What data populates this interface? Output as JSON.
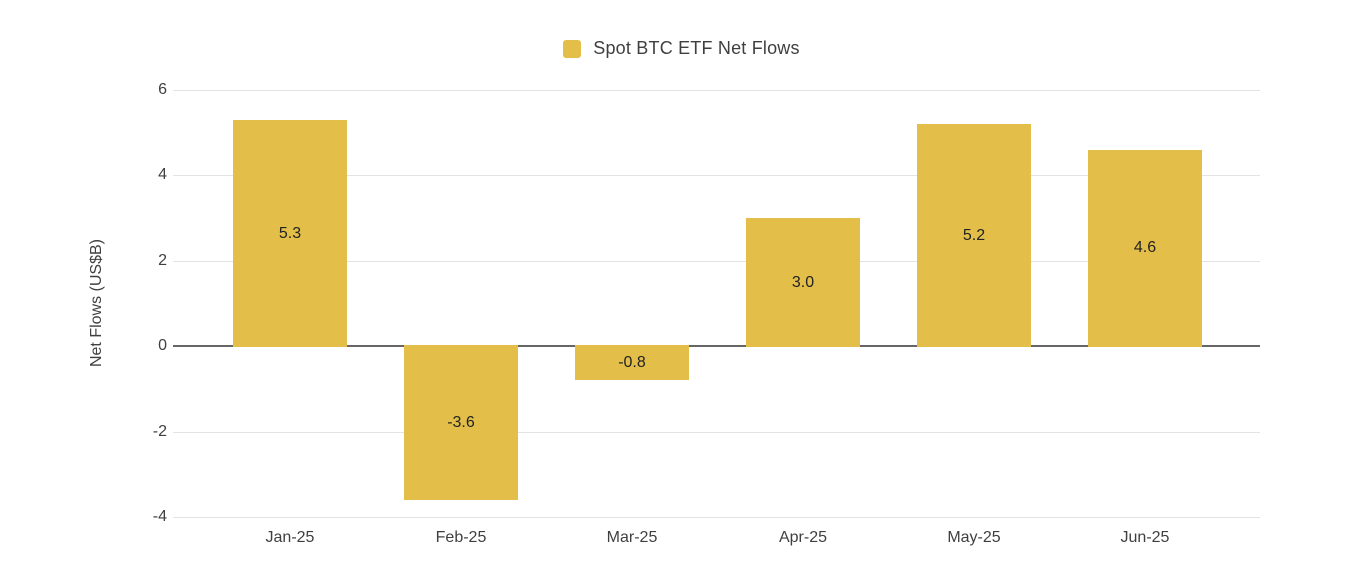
{
  "chart_data": {
    "type": "bar",
    "legend_label": "Spot BTC ETF Net Flows",
    "legend_position": "top",
    "categories": [
      "Jan-25",
      "Feb-25",
      "Mar-25",
      "Apr-25",
      "May-25",
      "Jun-25"
    ],
    "values": [
      5.3,
      -3.6,
      -0.8,
      3.0,
      5.2,
      4.6
    ],
    "data_labels": [
      "5.3",
      "-3.6",
      "-0.8",
      "3.0",
      "5.2",
      "4.6"
    ],
    "xlabel": "",
    "ylabel": "Net Flows (US$B)",
    "yticks": [
      6,
      4,
      2,
      0,
      -2,
      -4
    ],
    "ylim": [
      -4,
      6
    ],
    "grid": true,
    "colors": {
      "bar": "#E3BF4A",
      "gridline": "#E3E3E3",
      "zero_line": "#666666",
      "tick_label": "#3F3F3F",
      "axis_title": "#3F3F3F",
      "data_label": "#222222",
      "background": "#FFFFFF"
    }
  }
}
